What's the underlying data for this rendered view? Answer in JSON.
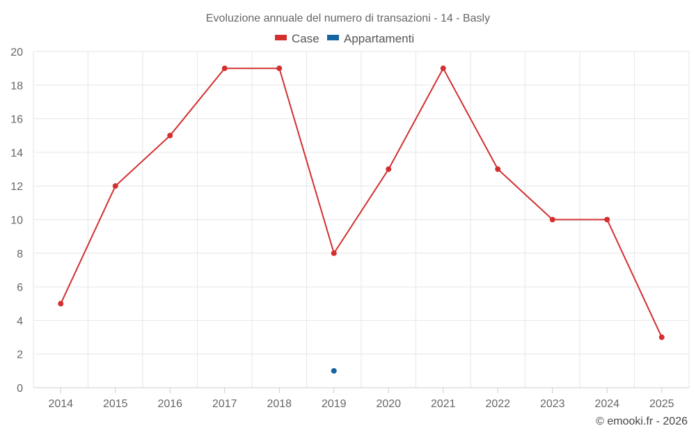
{
  "chart_data": {
    "type": "line",
    "title": "Evoluzione annuale del numero di transazioni - 14 - Basly",
    "xlabel": "",
    "ylabel": "",
    "categories": [
      "2014",
      "2015",
      "2016",
      "2017",
      "2018",
      "2019",
      "2020",
      "2021",
      "2022",
      "2023",
      "2024",
      "2025"
    ],
    "ylim": [
      0,
      20
    ],
    "yticks": [
      "0",
      "2",
      "4",
      "6",
      "8",
      "10",
      "12",
      "14",
      "16",
      "18",
      "20"
    ],
    "grid": true,
    "legend_position": "top-center",
    "series": [
      {
        "name": "Case",
        "color": "#d32f2f",
        "values": [
          5,
          12,
          15,
          19,
          19,
          8,
          13,
          19,
          13,
          10,
          10,
          3
        ]
      },
      {
        "name": "Appartamenti",
        "color": "#1565a0",
        "values": [
          null,
          null,
          null,
          null,
          null,
          1,
          null,
          null,
          null,
          null,
          null,
          null
        ]
      }
    ]
  },
  "credit": "© emooki.fr - 2026"
}
